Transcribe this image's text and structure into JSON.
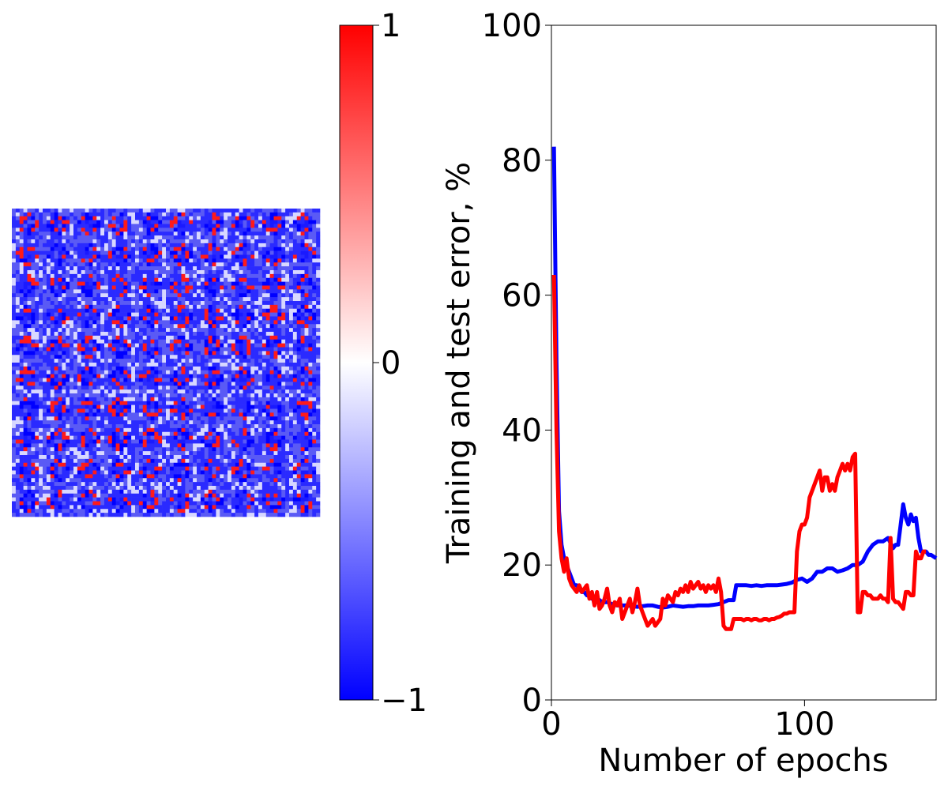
{
  "chart_data": [
    {
      "type": "heatmap",
      "grid_rows": 10,
      "grid_cols": 10,
      "colormap": "bwr",
      "colorbar": {
        "min": -1,
        "max": 1,
        "ticks": [
          {
            "value": 1,
            "label": "1"
          },
          {
            "value": 0,
            "label": "0"
          },
          {
            "value": -1,
            "label": "−1"
          }
        ],
        "colors": {
          "min": "#0000ff",
          "mid": "#ffffff",
          "max": "#ff0000"
        }
      }
    },
    {
      "type": "line",
      "xlabel": "Number of epochs",
      "ylabel": "Training and test error, %",
      "xlim": [
        0,
        152
      ],
      "ylim": [
        0,
        100
      ],
      "xticks": [
        {
          "value": 0,
          "label": "0"
        },
        {
          "value": 100,
          "label": "100"
        }
      ],
      "yticks": [
        {
          "value": 0,
          "label": "0"
        },
        {
          "value": 20,
          "label": "20"
        },
        {
          "value": 40,
          "label": "40"
        },
        {
          "value": 60,
          "label": "60"
        },
        {
          "value": 80,
          "label": "80"
        },
        {
          "value": 100,
          "label": "100"
        }
      ],
      "grid": false,
      "series": [
        {
          "color": "#0000ff",
          "points": [
            [
              1,
              82
            ],
            [
              2,
              50
            ],
            [
              3,
              28
            ],
            [
              4,
              23
            ],
            [
              5,
              21
            ],
            [
              6,
              20
            ],
            [
              7,
              19
            ],
            [
              8,
              18
            ],
            [
              9,
              17
            ],
            [
              10,
              17
            ],
            [
              11,
              16.5
            ],
            [
              12,
              16
            ],
            [
              13,
              16
            ],
            [
              14,
              15.5
            ],
            [
              15,
              15.5
            ],
            [
              16,
              15
            ],
            [
              17,
              15
            ],
            [
              18,
              14.8
            ],
            [
              19,
              14.8
            ],
            [
              20,
              14.5
            ],
            [
              22,
              14.5
            ],
            [
              24,
              14.2
            ],
            [
              26,
              14
            ],
            [
              28,
              14
            ],
            [
              30,
              14
            ],
            [
              32,
              13.9
            ],
            [
              34,
              13.8
            ],
            [
              36,
              13.9
            ],
            [
              38,
              14
            ],
            [
              40,
              14
            ],
            [
              42,
              13.8
            ],
            [
              44,
              13.7
            ],
            [
              46,
              13.8
            ],
            [
              48,
              14
            ],
            [
              50,
              13.9
            ],
            [
              52,
              13.8
            ],
            [
              54,
              13.9
            ],
            [
              56,
              13.9
            ],
            [
              58,
              14
            ],
            [
              60,
              14
            ],
            [
              62,
              14
            ],
            [
              64,
              14.1
            ],
            [
              66,
              14.2
            ],
            [
              68,
              14.5
            ],
            [
              70,
              14.8
            ],
            [
              72,
              14.8
            ],
            [
              73,
              17
            ],
            [
              75,
              17
            ],
            [
              77,
              17
            ],
            [
              79,
              16.9
            ],
            [
              81,
              17
            ],
            [
              83,
              16.9
            ],
            [
              85,
              17
            ],
            [
              87,
              17
            ],
            [
              89,
              17
            ],
            [
              91,
              17.1
            ],
            [
              93,
              17.2
            ],
            [
              95,
              17.4
            ],
            [
              97,
              17.8
            ],
            [
              99,
              18
            ],
            [
              101,
              17.5
            ],
            [
              103,
              18
            ],
            [
              105,
              19
            ],
            [
              107,
              19
            ],
            [
              109,
              19.5
            ],
            [
              111,
              19.5
            ],
            [
              113,
              19
            ],
            [
              115,
              19.2
            ],
            [
              117,
              19.5
            ],
            [
              119,
              20
            ],
            [
              121,
              20
            ],
            [
              123,
              20.5
            ],
            [
              125,
              22
            ],
            [
              127,
              23
            ],
            [
              129,
              23.5
            ],
            [
              131,
              23.5
            ],
            [
              133,
              24
            ],
            [
              135,
              22.5
            ],
            [
              136,
              23
            ],
            [
              137,
              23
            ],
            [
              138,
              26
            ],
            [
              139,
              29
            ],
            [
              140,
              27
            ],
            [
              141,
              26
            ],
            [
              142,
              27.5
            ],
            [
              143,
              26.5
            ],
            [
              144,
              27
            ],
            [
              145,
              24
            ],
            [
              146,
              22
            ],
            [
              147,
              22
            ],
            [
              148,
              22
            ],
            [
              149,
              21.5
            ],
            [
              150,
              21.5
            ],
            [
              152,
              21
            ]
          ]
        },
        {
          "color": "#ff0000",
          "points": [
            [
              1,
              63
            ],
            [
              2,
              40
            ],
            [
              3,
              25
            ],
            [
              4,
              21
            ],
            [
              5,
              19
            ],
            [
              6,
              21
            ],
            [
              7,
              18
            ],
            [
              8,
              17
            ],
            [
              9,
              16.5
            ],
            [
              10,
              16
            ],
            [
              11,
              17
            ],
            [
              12,
              16
            ],
            [
              13,
              16.5
            ],
            [
              14,
              17
            ],
            [
              15,
              15
            ],
            [
              16,
              16
            ],
            [
              17,
              14
            ],
            [
              18,
              16
            ],
            [
              19,
              13.5
            ],
            [
              20,
              14
            ],
            [
              21,
              15
            ],
            [
              22,
              16.5
            ],
            [
              23,
              14
            ],
            [
              24,
              13
            ],
            [
              25,
              14.5
            ],
            [
              26,
              14
            ],
            [
              27,
              15
            ],
            [
              28,
              12
            ],
            [
              29,
              13
            ],
            [
              30,
              14
            ],
            [
              31,
              15
            ],
            [
              32,
              13
            ],
            [
              33,
              14.5
            ],
            [
              34,
              16.5
            ],
            [
              35,
              14
            ],
            [
              36,
              13
            ],
            [
              37,
              12
            ],
            [
              38,
              11
            ],
            [
              39,
              11.5
            ],
            [
              40,
              12
            ],
            [
              41,
              11
            ],
            [
              42,
              11.5
            ],
            [
              43,
              12
            ],
            [
              44,
              15
            ],
            [
              45,
              14
            ],
            [
              46,
              15.5
            ],
            [
              47,
              15
            ],
            [
              48,
              14.5
            ],
            [
              49,
              16
            ],
            [
              50,
              15.5
            ],
            [
              51,
              16.5
            ],
            [
              52,
              16
            ],
            [
              53,
              17
            ],
            [
              54,
              16
            ],
            [
              55,
              17.5
            ],
            [
              56,
              16.5
            ],
            [
              57,
              17
            ],
            [
              58,
              17.5
            ],
            [
              59,
              16.5
            ],
            [
              60,
              17
            ],
            [
              61,
              16
            ],
            [
              62,
              17
            ],
            [
              63,
              16.5
            ],
            [
              64,
              17
            ],
            [
              65,
              16
            ],
            [
              66,
              18
            ],
            [
              67,
              16
            ],
            [
              68,
              11
            ],
            [
              69,
              10.5
            ],
            [
              70,
              10.5
            ],
            [
              71,
              10.5
            ],
            [
              72,
              12
            ],
            [
              73,
              12
            ],
            [
              74,
              12
            ],
            [
              75,
              12
            ],
            [
              76,
              11.8
            ],
            [
              77,
              12
            ],
            [
              78,
              12
            ],
            [
              79,
              11.8
            ],
            [
              80,
              12
            ],
            [
              81,
              12
            ],
            [
              82,
              11.8
            ],
            [
              83,
              11.8
            ],
            [
              84,
              12
            ],
            [
              85,
              12
            ],
            [
              86,
              11.8
            ],
            [
              87,
              12
            ],
            [
              88,
              12
            ],
            [
              89,
              12.2
            ],
            [
              90,
              12.3
            ],
            [
              91,
              12.5
            ],
            [
              92,
              12.8
            ],
            [
              93,
              12.8
            ],
            [
              94,
              13
            ],
            [
              95,
              13
            ],
            [
              96,
              13
            ],
            [
              97,
              22
            ],
            [
              98,
              25
            ],
            [
              99,
              26
            ],
            [
              100,
              26
            ],
            [
              101,
              27
            ],
            [
              102,
              30
            ],
            [
              103,
              31
            ],
            [
              104,
              32
            ],
            [
              105,
              33
            ],
            [
              106,
              34
            ],
            [
              107,
              31
            ],
            [
              108,
              33
            ],
            [
              109,
              33
            ],
            [
              110,
              31
            ],
            [
              111,
              32
            ],
            [
              112,
              31
            ],
            [
              113,
              33
            ],
            [
              114,
              34
            ],
            [
              115,
              35
            ],
            [
              116,
              34
            ],
            [
              117,
              35
            ],
            [
              118,
              34
            ],
            [
              119,
              36
            ],
            [
              120,
              36.5
            ],
            [
              121,
              13
            ],
            [
              122,
              13
            ],
            [
              123,
              16
            ],
            [
              124,
              16
            ],
            [
              125,
              15.5
            ],
            [
              126,
              15.5
            ],
            [
              127,
              15
            ],
            [
              128,
              15
            ],
            [
              129,
              15
            ],
            [
              130,
              15.5
            ],
            [
              131,
              15
            ],
            [
              132,
              15
            ],
            [
              133,
              14.5
            ],
            [
              134,
              24
            ],
            [
              135,
              15
            ],
            [
              136,
              14.5
            ],
            [
              137,
              14.5
            ],
            [
              138,
              14
            ],
            [
              139,
              13.5
            ],
            [
              140,
              16
            ],
            [
              141,
              16
            ],
            [
              142,
              15.5
            ],
            [
              143,
              15.5
            ],
            [
              144,
              22
            ],
            [
              145,
              21
            ],
            [
              146,
              21
            ],
            [
              147,
              22
            ],
            [
              148,
              22
            ]
          ]
        }
      ]
    }
  ]
}
